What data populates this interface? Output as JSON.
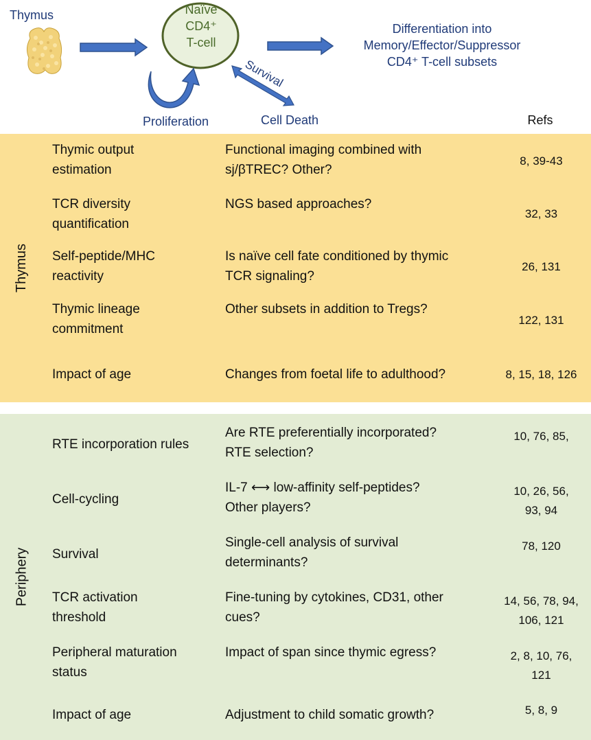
{
  "diagram": {
    "thymus_label": "Thymus",
    "naive_cell_label": "Naïve CD4⁺ T-cell",
    "naive_line1": "Naïve",
    "naive_line2": "CD4⁺",
    "naive_line3": "T-cell",
    "differentiation_line1": "Differentiation into",
    "differentiation_line2": "Memory/Effector/Suppressor",
    "differentiation_line3": "CD4⁺ T-cell subsets",
    "survival_label": "Survival",
    "proliferation_label": "Proliferation",
    "cell_death_label": "Cell Death",
    "refs_header": "Refs",
    "colors": {
      "arrow_blue": "#4472c4",
      "arrow_border": "#2f528f",
      "cell_fill": "#eaf1dd",
      "cell_border": "#4f6228",
      "thymus_fill": "#f5d98a"
    }
  },
  "thymus_section": {
    "label": "Thymus",
    "color": "#fbe095",
    "rows": [
      {
        "topic": "Thymic output estimation",
        "topic_l1": "Thymic output",
        "topic_l2": "estimation",
        "question_l1": "Functional imaging combined with",
        "question_l2": "sj/βTREC? Other?",
        "refs": "8, 39-43"
      },
      {
        "topic_l1": "TCR diversity",
        "topic_l2": "quantification",
        "question_l1": "NGS based approaches?",
        "question_l2": "",
        "refs": "32, 33"
      },
      {
        "topic_l1": "Self-peptide/MHC",
        "topic_l2": "reactivity",
        "question_l1": "Is naïve cell fate conditioned by thymic",
        "question_l2": "TCR signaling?",
        "refs": "26, 131"
      },
      {
        "topic_l1": "Thymic lineage",
        "topic_l2": "commitment",
        "question_l1": "Other subsets in addition to Tregs?",
        "question_l2": "",
        "refs": "122, 131"
      },
      {
        "topic_l1": "Impact of age",
        "topic_l2": "",
        "question_l1": "Changes from foetal life to adulthood?",
        "question_l2": "",
        "refs": "8, 15, 18, 126"
      }
    ]
  },
  "periphery_section": {
    "label": "Periphery",
    "color": "#e3ecd4",
    "rows": [
      {
        "topic_l1": "RTE incorporation rules",
        "topic_l2": "",
        "question_l1": "Are RTE preferentially incorporated?",
        "question_l2": "RTE selection?",
        "refs": "10, 76, 85,"
      },
      {
        "topic_l1": "Cell-cycling",
        "topic_l2": "",
        "question_l1": "IL-7 ⟷ low-affinity self-peptides?",
        "question_l2": "Other players?",
        "refs": "10, 26, 56,\n93,     94"
      },
      {
        "topic_l1": "Survival",
        "topic_l2": "",
        "question_l1": "Single-cell analysis of survival",
        "question_l2": "determinants?",
        "refs": "78, 120"
      },
      {
        "topic_l1": "TCR activation",
        "topic_l2": "threshold",
        "question_l1": "Fine-tuning by cytokines, CD31, other",
        "question_l2": "cues?",
        "refs": "14, 56, 78, 94,\n106, 121"
      },
      {
        "topic_l1": "Peripheral maturation",
        "topic_l2": "status",
        "question_l1": "Impact of span since thymic egress?",
        "question_l2": "",
        "refs": "2, 8, 10, 76,\n121"
      },
      {
        "topic_l1": "Impact of age",
        "topic_l2": "",
        "question_l1": "Adjustment to child somatic growth?",
        "question_l2": "",
        "refs": "5, 8, 9"
      }
    ]
  }
}
